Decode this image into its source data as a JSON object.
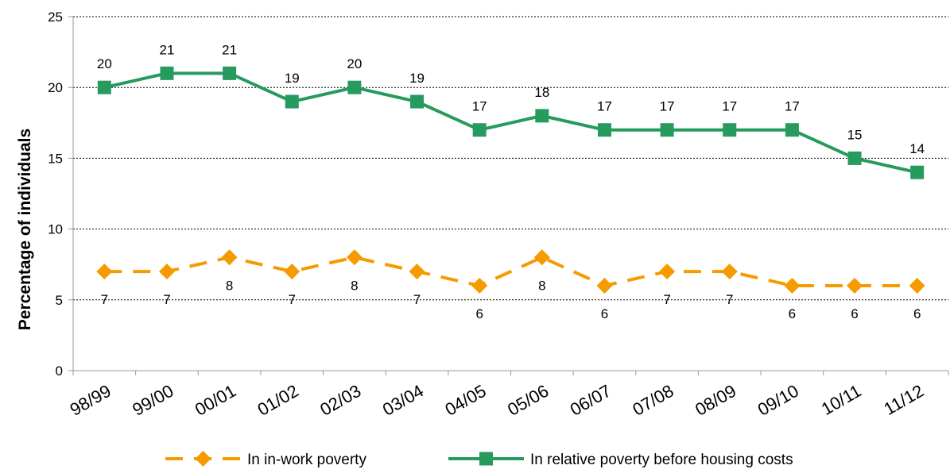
{
  "chart_data": {
    "type": "line",
    "title": "",
    "xlabel": "",
    "ylabel": "Percentage of individuals",
    "ylim": [
      0,
      25
    ],
    "yticks": [
      0,
      5,
      10,
      15,
      20,
      25
    ],
    "grid": "horizontal-dashed",
    "legend_position": "bottom",
    "categories": [
      "98/99",
      "99/00",
      "00/01",
      "01/02",
      "02/03",
      "03/04",
      "04/05",
      "05/06",
      "06/07",
      "07/08",
      "08/09",
      "09/10",
      "10/11",
      "11/12"
    ],
    "series": [
      {
        "name": "In in-work poverty",
        "values": [
          7,
          7,
          8,
          7,
          8,
          7,
          6,
          8,
          6,
          7,
          7,
          6,
          6,
          6
        ],
        "color": "#F59B00",
        "marker": "diamond",
        "line_style": "dashed",
        "label_position": "below"
      },
      {
        "name": "In relative poverty before housing costs",
        "values": [
          20,
          21,
          21,
          19,
          20,
          19,
          17,
          18,
          17,
          17,
          17,
          17,
          15,
          14
        ],
        "color": "#279A5D",
        "marker": "square",
        "line_style": "solid",
        "label_position": "above"
      }
    ]
  }
}
